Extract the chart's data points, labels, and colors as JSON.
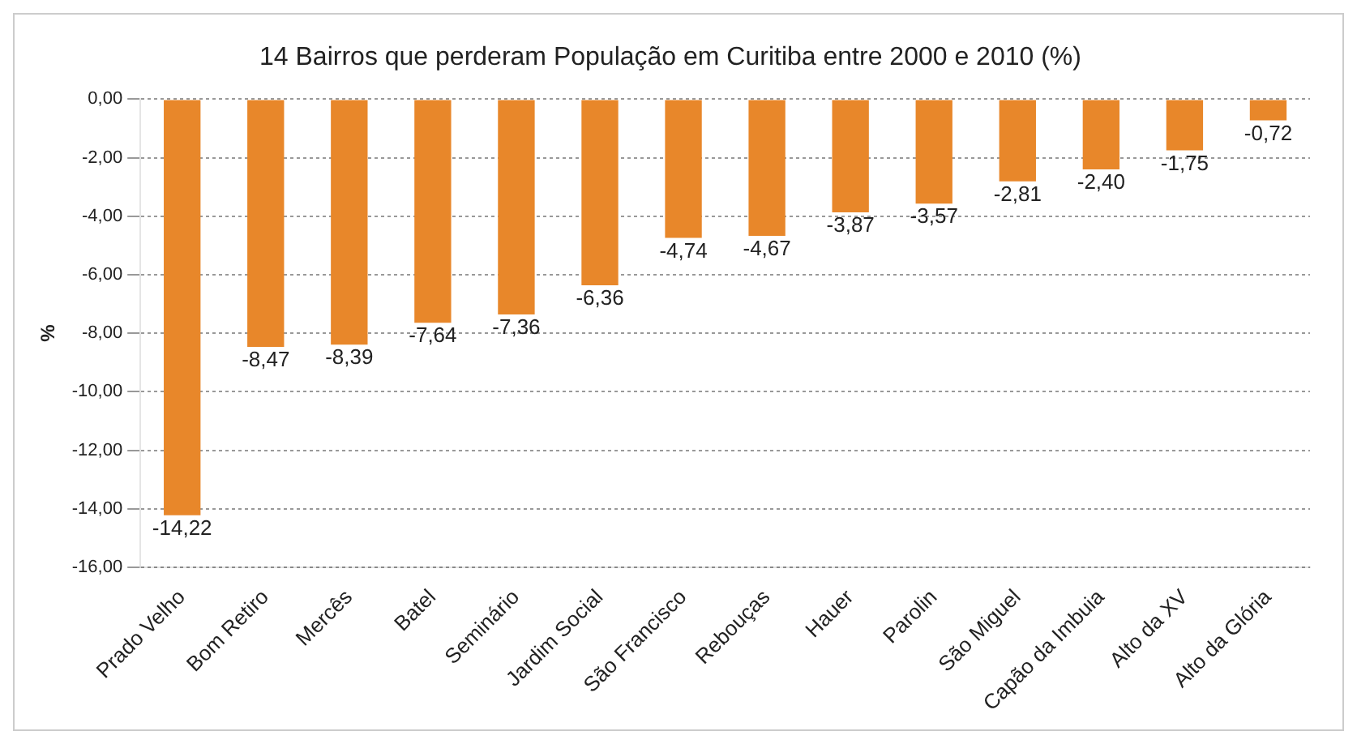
{
  "chart_data": {
    "type": "bar",
    "title": "14 Bairros que perderam População em Curitiba entre 2000 e 2010 (%)",
    "ylabel": "%",
    "categories": [
      "Prado Velho",
      "Bom Retiro",
      "Mercês",
      "Batel",
      "Seminário",
      "Jardim Social",
      "São Francisco",
      "Rebouças",
      "Hauer",
      "Parolin",
      "São Miguel",
      "Capão da Imbuia",
      "Alto da XV",
      "Alto da Glória"
    ],
    "values": [
      -14.22,
      -8.47,
      -8.39,
      -7.64,
      -7.36,
      -6.36,
      -4.74,
      -4.67,
      -3.87,
      -3.57,
      -2.81,
      -2.4,
      -1.75,
      -0.72
    ],
    "value_labels": [
      "-14,22",
      "-8,47",
      "-8,39",
      "-7,64",
      "-7,36",
      "-6,36",
      "-4,74",
      "-4,67",
      "-3,87",
      "-3,57",
      "-2,81",
      "-2,40",
      "-1,75",
      "-0,72"
    ],
    "color": "#e8872a",
    "ylim": [
      -16,
      0
    ],
    "yticks": [
      {
        "value": 0,
        "label": "0,00"
      },
      {
        "value": -2,
        "label": "-2,00"
      },
      {
        "value": -4,
        "label": "-4,00"
      },
      {
        "value": -6,
        "label": "-6,00"
      },
      {
        "value": -8,
        "label": "-8,00"
      },
      {
        "value": -10,
        "label": "-10,00"
      },
      {
        "value": -12,
        "label": "-12,00"
      },
      {
        "value": -14,
        "label": "-14,00"
      },
      {
        "value": -16,
        "label": "-16,00"
      }
    ],
    "grid": "y",
    "legend": false
  }
}
